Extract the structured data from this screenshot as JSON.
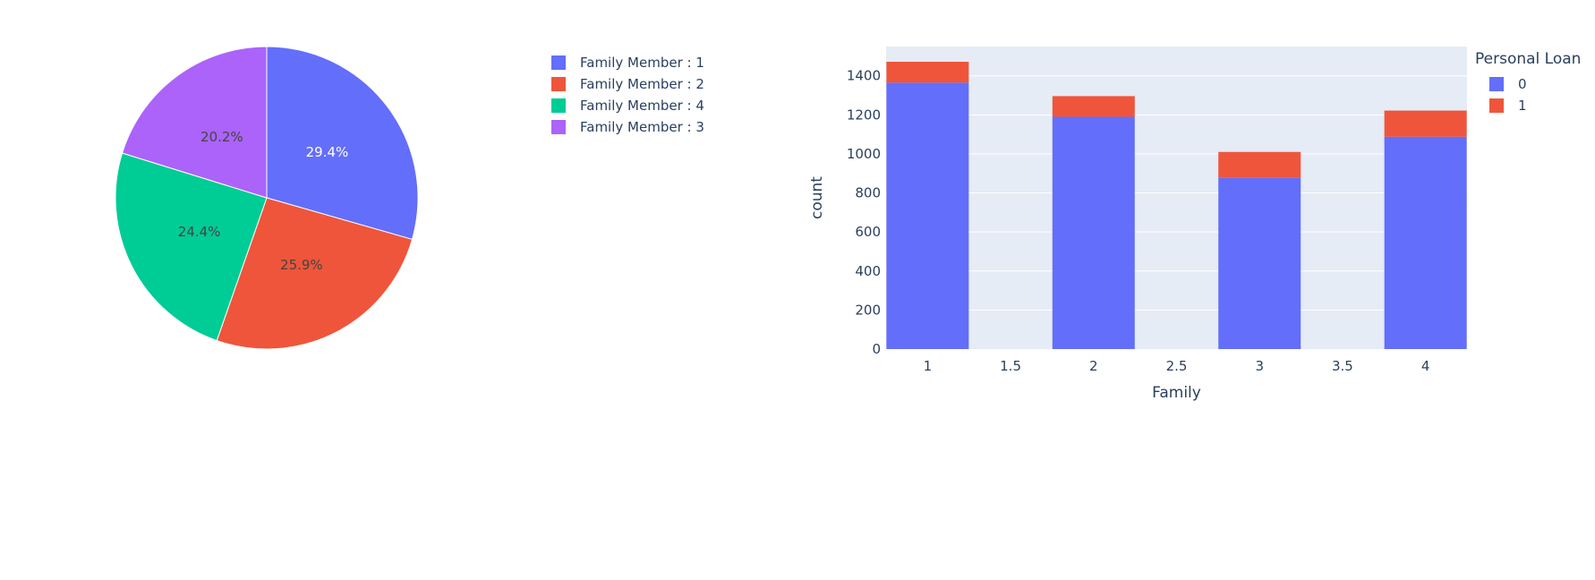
{
  "chart_data": [
    {
      "type": "pie",
      "labels": [
        "Family Member : 1",
        "Family Member : 2",
        "Family Member : 4",
        "Family Member : 3"
      ],
      "values": [
        29.4,
        25.9,
        24.4,
        20.2
      ],
      "value_labels": [
        "29.4%",
        "25.9%",
        "24.4%",
        "20.2%"
      ],
      "colors": [
        "#636efa",
        "#EF553B",
        "#00cc96",
        "#ab63fa"
      ],
      "direction": "clockwise",
      "legend_placement": "right"
    },
    {
      "type": "bar",
      "stacked": true,
      "x": [
        1,
        2,
        3,
        4
      ],
      "series": [
        {
          "name": "0",
          "values": [
            1365,
            1190,
            877,
            1088
          ],
          "color": "#636efa"
        },
        {
          "name": "1",
          "values": [
            107,
            106,
            133,
            134
          ],
          "color": "#EF553B"
        }
      ],
      "xlabel": "Family",
      "ylabel": "count",
      "xlim": [
        0.75,
        4.25
      ],
      "ylim": [
        0,
        1550
      ],
      "xticks": [
        "1",
        "1.5",
        "2",
        "2.5",
        "3",
        "3.5",
        "4"
      ],
      "yticks": [
        "0",
        "200",
        "400",
        "600",
        "800",
        "1000",
        "1200",
        "1400"
      ],
      "legend_title": "Personal Loan",
      "legend_placement": "top-right",
      "grid": true,
      "plot_bgcolor": "#E5ECF6"
    }
  ]
}
